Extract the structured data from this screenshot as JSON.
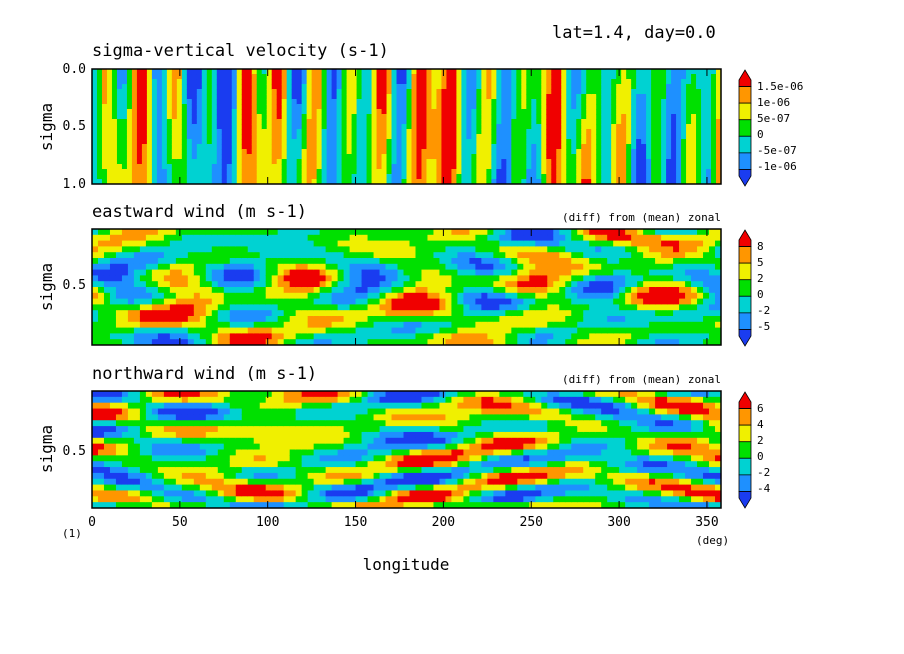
{
  "header": {
    "info": "lat=1.4, day=0.0"
  },
  "footer": {
    "unit_left": "(1)",
    "unit_right": "(deg)"
  },
  "xaxis": {
    "label": "longitude",
    "ticks": [
      "0",
      "50",
      "100",
      "150",
      "200",
      "250",
      "300",
      "350"
    ],
    "range": [
      0,
      358
    ]
  },
  "colors": [
    "#1a3cf0",
    "#1e90ff",
    "#00d2d2",
    "#00e000",
    "#f0f000",
    "#ff9600",
    "#f00000"
  ],
  "panels": [
    {
      "title": "sigma-vertical velocity (s-1)",
      "note": "",
      "ylabel": "sigma",
      "yticks": [
        "0.0",
        "0.5",
        "1.0"
      ],
      "colorbar": [
        "1.5e-06",
        "1e-06",
        "5e-07",
        "0",
        "-5e-07",
        "-1e-06"
      ]
    },
    {
      "title": "eastward wind (m s-1)",
      "note": "(diff) from (mean) zonal",
      "ylabel": "sigma",
      "yticks": [
        "0.5"
      ],
      "colorbar": [
        "8",
        "5",
        "2",
        "0",
        "-2",
        "-5"
      ]
    },
    {
      "title": "northward wind (m s-1)",
      "note": "(diff) from (mean) zonal",
      "ylabel": "sigma",
      "yticks": [
        "0.5"
      ],
      "colorbar": [
        "6",
        "4",
        "2",
        "0",
        "-2",
        "-4"
      ]
    }
  ],
  "chart_data": [
    {
      "type": "heatmap",
      "title": "sigma-vertical velocity (s-1)",
      "xlabel": "longitude",
      "ylabel": "sigma",
      "xlim": [
        0,
        358
      ],
      "ylim": [
        1.0,
        0.0
      ],
      "levels": [
        -1e-06,
        -5e-07,
        0,
        5e-07,
        1e-06,
        1.5e-06
      ]
    },
    {
      "type": "heatmap",
      "title": "eastward wind (m s-1)",
      "xlabel": "longitude",
      "ylabel": "sigma",
      "xlim": [
        0,
        358
      ],
      "levels": [
        -5,
        -2,
        0,
        2,
        5,
        8
      ]
    },
    {
      "type": "heatmap",
      "title": "northward wind (m s-1)",
      "xlabel": "longitude",
      "ylabel": "sigma",
      "xlim": [
        0,
        358
      ],
      "levels": [
        -4,
        -2,
        0,
        2,
        4,
        6
      ]
    }
  ]
}
